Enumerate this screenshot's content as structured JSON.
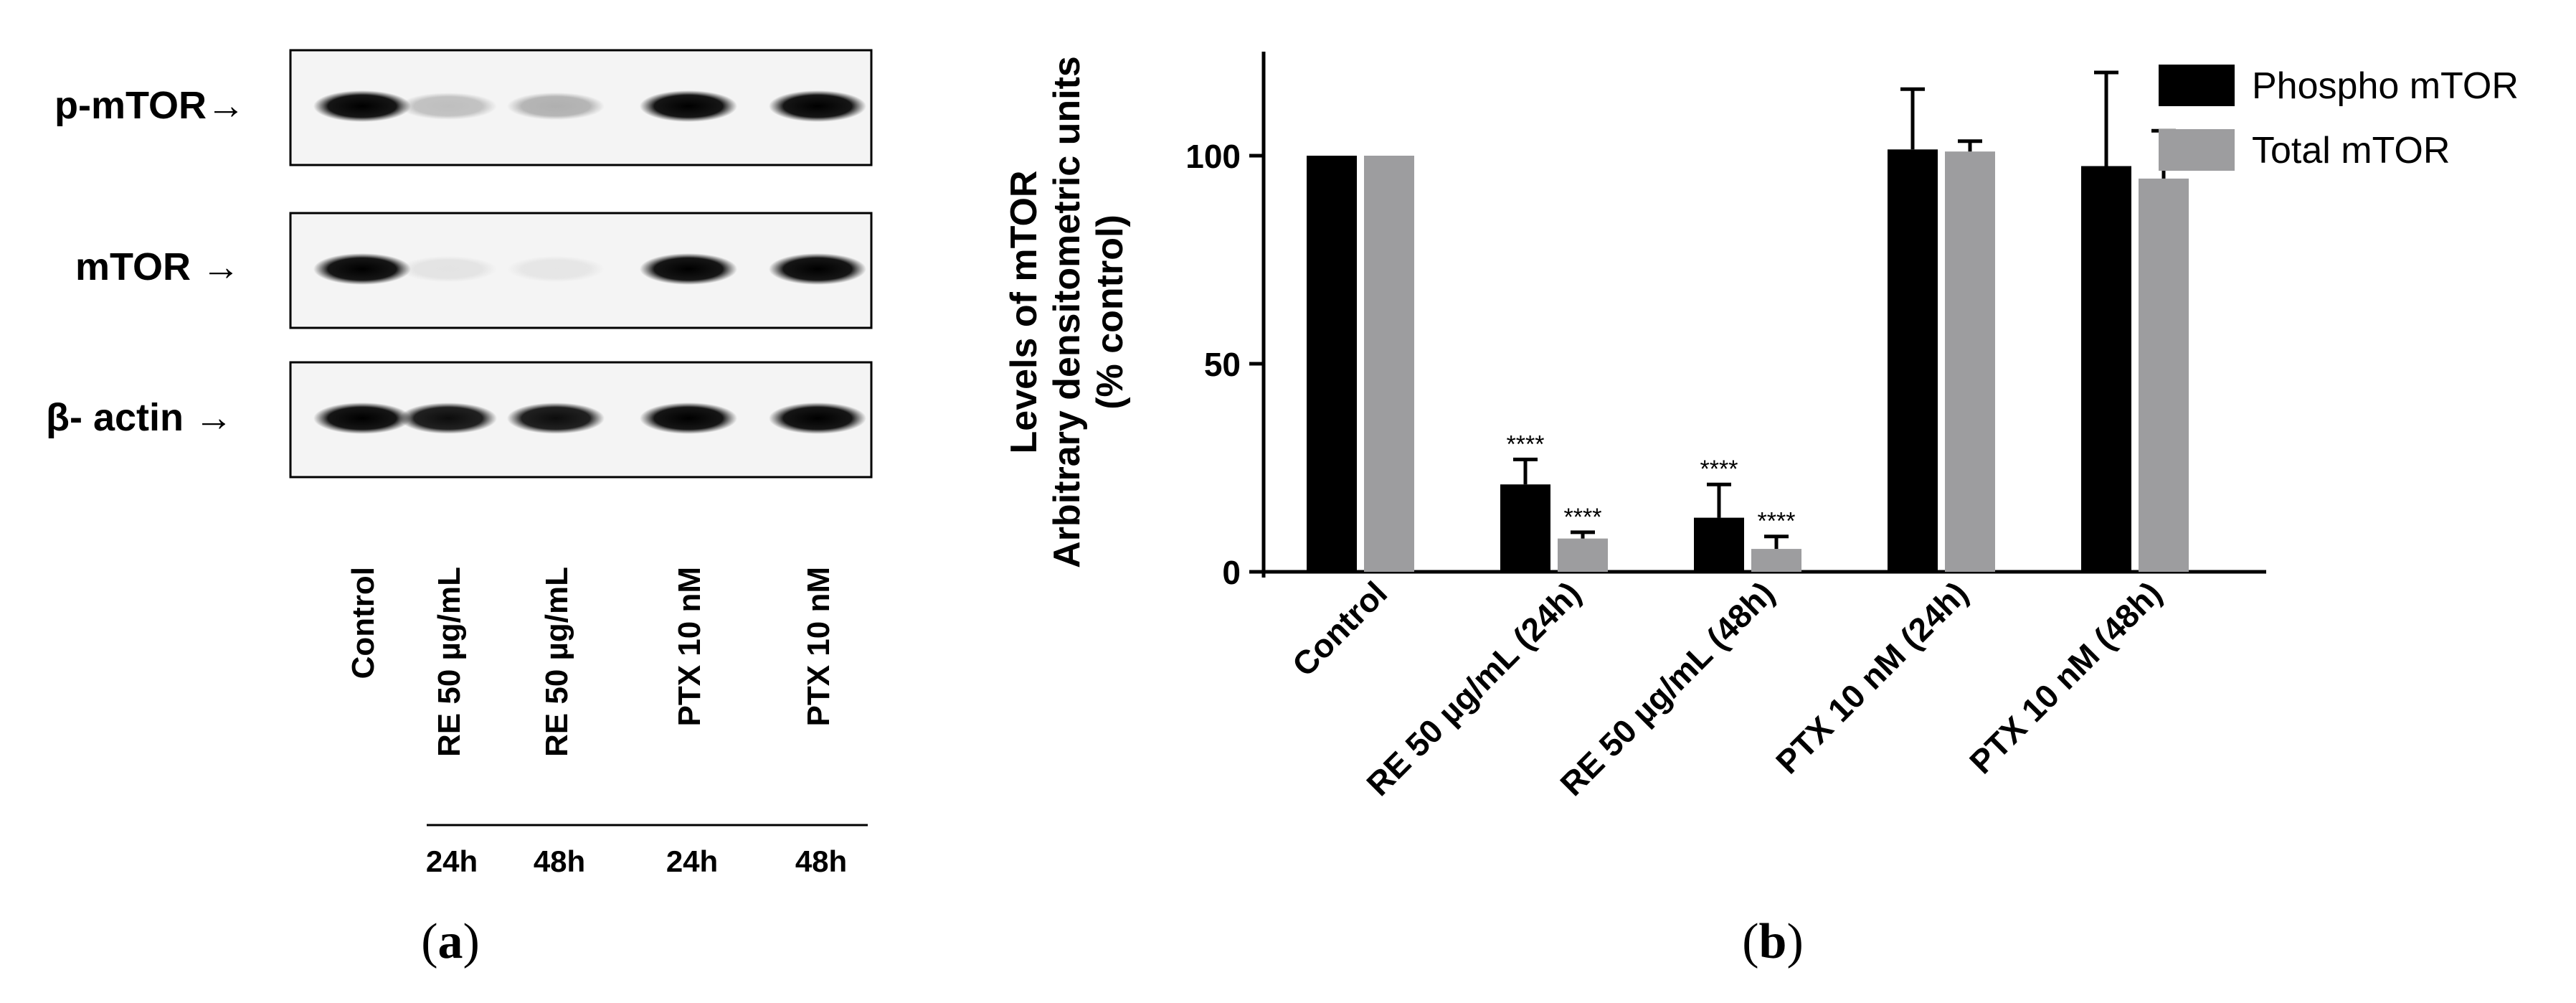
{
  "blot": {
    "rows": [
      {
        "label": "p-mTOR→",
        "intensity": [
          1.0,
          0.22,
          0.28,
          1.0,
          1.0
        ]
      },
      {
        "label": "mTOR →",
        "intensity": [
          1.0,
          0.07,
          0.06,
          1.0,
          1.0
        ]
      },
      {
        "label": "β- actin →",
        "intensity": [
          1.0,
          0.95,
          0.95,
          1.0,
          1.0
        ]
      }
    ],
    "lanes": [
      "Control",
      "RE 50 µg/mL",
      "RE 50 µg/mL",
      "PTX 10 nM",
      "PTX 10 nM"
    ],
    "times": [
      "24h",
      "48h",
      "24h",
      "48h"
    ],
    "caption_letter": "a"
  },
  "chart_data": {
    "type": "bar",
    "categories": [
      "Control",
      "RE 50 µg/mL (24h)",
      "RE 50 µg/mL  (48h)",
      "PTX 10 nM (24h)",
      "PTX 10 nM (48h)"
    ],
    "series": [
      {
        "name": "Phospho mTOR",
        "color": "#000000",
        "values": [
          100,
          21,
          13,
          101.5,
          97.5
        ],
        "errors": [
          0,
          6,
          8,
          14.5,
          22.5
        ],
        "significance": [
          "",
          "****",
          "****",
          "",
          ""
        ]
      },
      {
        "name": "Total mTOR",
        "color": "#9d9d9f",
        "values": [
          100,
          8,
          5.5,
          101,
          94.5
        ],
        "errors": [
          0,
          1.5,
          3,
          2.5,
          11.5
        ],
        "significance": [
          "",
          "****",
          "****",
          "",
          ""
        ]
      }
    ],
    "ylabel_lines": [
      "Levels of mTOR",
      "Arbitrary densitometric units",
      "(% control)"
    ],
    "ylim": [
      0,
      125
    ],
    "yticks": [
      0,
      50,
      100
    ],
    "legend_position": "top-right",
    "caption_letter": "b"
  }
}
